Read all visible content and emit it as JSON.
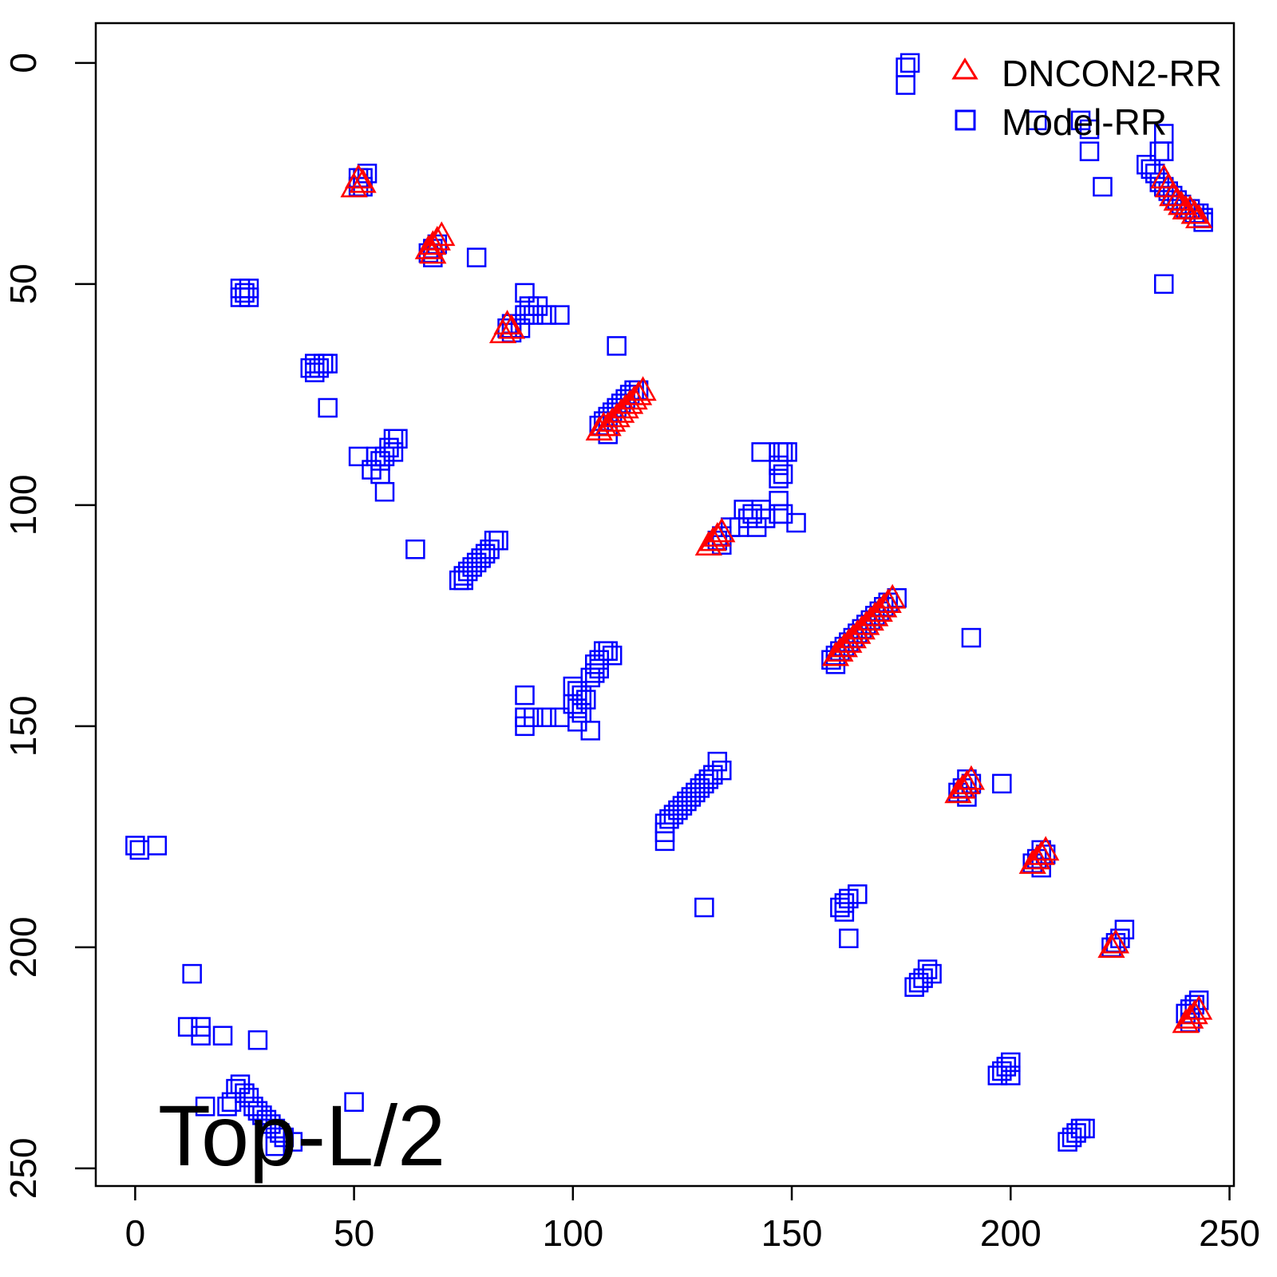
{
  "chart_data": {
    "type": "scatter",
    "title": "",
    "xlabel": "",
    "ylabel": "",
    "xlim": [
      -9,
      251
    ],
    "ylim": [
      -9,
      254
    ],
    "y_inverted": true,
    "x_ticks": [
      0,
      50,
      100,
      150,
      200,
      250
    ],
    "y_ticks": [
      0,
      50,
      100,
      150,
      200,
      250
    ],
    "grid": false,
    "annotation": "Top-L/2",
    "legend": {
      "placement": "top-right",
      "entries": [
        {
          "label": "DNCON2-RR",
          "marker": "triangle",
          "color": "#ff0000"
        },
        {
          "label": "Model-RR",
          "marker": "square",
          "color": "#0000ff"
        }
      ]
    },
    "series": [
      {
        "name": "Model-RR",
        "marker": "square",
        "color": "#0000ff",
        "points": [
          [
            177,
            0
          ],
          [
            176,
            1
          ],
          [
            176,
            5
          ],
          [
            206,
            13
          ],
          [
            216,
            13
          ],
          [
            218,
            15
          ],
          [
            235,
            16
          ],
          [
            234,
            20
          ],
          [
            235,
            20
          ],
          [
            218,
            20
          ],
          [
            231,
            23
          ],
          [
            232,
            24
          ],
          [
            233,
            25
          ],
          [
            234,
            27
          ],
          [
            235,
            28
          ],
          [
            236,
            29
          ],
          [
            237,
            30
          ],
          [
            238,
            31
          ],
          [
            239,
            32
          ],
          [
            240,
            33
          ],
          [
            241,
            33
          ],
          [
            242,
            34
          ],
          [
            243,
            34
          ],
          [
            244,
            35
          ],
          [
            244,
            36
          ],
          [
            221,
            28
          ],
          [
            235,
            50
          ],
          [
            51,
            26
          ],
          [
            52,
            26
          ],
          [
            53,
            25
          ],
          [
            51,
            28
          ],
          [
            52,
            28
          ],
          [
            68,
            42
          ],
          [
            69,
            41
          ],
          [
            67,
            43
          ],
          [
            68,
            44
          ],
          [
            78,
            44
          ],
          [
            24,
            51
          ],
          [
            25,
            52
          ],
          [
            26,
            51
          ],
          [
            24,
            53
          ],
          [
            26,
            53
          ],
          [
            89,
            52
          ],
          [
            90,
            55
          ],
          [
            92,
            55
          ],
          [
            89,
            57
          ],
          [
            91,
            57
          ],
          [
            94,
            57
          ],
          [
            97,
            57
          ],
          [
            86,
            59
          ],
          [
            85,
            60
          ],
          [
            86,
            61
          ],
          [
            88,
            60
          ],
          [
            110,
            64
          ],
          [
            40,
            69
          ],
          [
            41,
            68
          ],
          [
            42,
            69
          ],
          [
            43,
            68
          ],
          [
            44,
            68
          ],
          [
            41,
            70
          ],
          [
            44,
            78
          ],
          [
            106,
            82
          ],
          [
            107,
            81
          ],
          [
            108,
            80
          ],
          [
            109,
            79
          ],
          [
            110,
            78
          ],
          [
            111,
            77
          ],
          [
            112,
            76
          ],
          [
            113,
            75
          ],
          [
            114,
            74
          ],
          [
            115,
            74
          ],
          [
            108,
            84
          ],
          [
            59,
            85
          ],
          [
            60,
            85
          ],
          [
            58,
            87
          ],
          [
            59,
            88
          ],
          [
            57,
            89
          ],
          [
            56,
            90
          ],
          [
            51,
            89
          ],
          [
            55,
            89
          ],
          [
            54,
            92
          ],
          [
            56,
            93
          ],
          [
            57,
            97
          ],
          [
            64,
            110
          ],
          [
            143,
            88
          ],
          [
            147,
            88
          ],
          [
            148,
            88
          ],
          [
            149,
            88
          ],
          [
            147,
            91
          ],
          [
            148,
            93
          ],
          [
            147,
            94
          ],
          [
            147,
            99
          ],
          [
            147,
            102
          ],
          [
            148,
            102
          ],
          [
            151,
            104
          ],
          [
            139,
            101
          ],
          [
            140,
            103
          ],
          [
            141,
            102
          ],
          [
            143,
            101
          ],
          [
            144,
            103
          ],
          [
            142,
            105
          ],
          [
            138,
            105
          ],
          [
            136,
            105
          ],
          [
            134,
            107
          ],
          [
            133,
            108
          ],
          [
            134,
            109
          ],
          [
            82,
            108
          ],
          [
            83,
            108
          ],
          [
            81,
            110
          ],
          [
            80,
            111
          ],
          [
            79,
            112
          ],
          [
            78,
            113
          ],
          [
            77,
            114
          ],
          [
            76,
            115
          ],
          [
            75,
            116
          ],
          [
            74,
            117
          ],
          [
            75,
            117
          ],
          [
            174,
            121
          ],
          [
            172,
            122
          ],
          [
            171,
            123
          ],
          [
            170,
            124
          ],
          [
            169,
            125
          ],
          [
            168,
            126
          ],
          [
            167,
            127
          ],
          [
            166,
            128
          ],
          [
            165,
            129
          ],
          [
            164,
            130
          ],
          [
            163,
            131
          ],
          [
            162,
            132
          ],
          [
            161,
            133
          ],
          [
            160,
            134
          ],
          [
            159,
            135
          ],
          [
            160,
            136
          ],
          [
            191,
            130
          ],
          [
            107,
            133
          ],
          [
            108,
            133
          ],
          [
            109,
            134
          ],
          [
            106,
            135
          ],
          [
            105,
            136
          ],
          [
            106,
            137
          ],
          [
            105,
            138
          ],
          [
            104,
            139
          ],
          [
            100,
            141
          ],
          [
            101,
            142
          ],
          [
            102,
            143
          ],
          [
            103,
            144
          ],
          [
            100,
            145
          ],
          [
            101,
            146
          ],
          [
            102,
            147
          ],
          [
            101,
            149
          ],
          [
            104,
            151
          ],
          [
            89,
            143
          ],
          [
            89,
            148
          ],
          [
            89,
            150
          ],
          [
            91,
            148
          ],
          [
            94,
            148
          ],
          [
            97,
            148
          ],
          [
            133,
            158
          ],
          [
            134,
            160
          ],
          [
            132,
            161
          ],
          [
            131,
            162
          ],
          [
            130,
            163
          ],
          [
            129,
            164
          ],
          [
            128,
            165
          ],
          [
            127,
            166
          ],
          [
            126,
            167
          ],
          [
            125,
            168
          ],
          [
            124,
            169
          ],
          [
            123,
            170
          ],
          [
            122,
            171
          ],
          [
            121,
            172
          ],
          [
            121,
            174
          ],
          [
            121,
            176
          ],
          [
            190,
            162
          ],
          [
            191,
            163
          ],
          [
            189,
            164
          ],
          [
            188,
            165
          ],
          [
            190,
            166
          ],
          [
            198,
            163
          ],
          [
            207,
            178
          ],
          [
            208,
            179
          ],
          [
            206,
            180
          ],
          [
            205,
            181
          ],
          [
            207,
            182
          ],
          [
            0,
            177
          ],
          [
            5,
            177
          ],
          [
            1,
            178
          ],
          [
            165,
            188
          ],
          [
            163,
            189
          ],
          [
            162,
            190
          ],
          [
            161,
            191
          ],
          [
            162,
            192
          ],
          [
            163,
            198
          ],
          [
            130,
            191
          ],
          [
            226,
            196
          ],
          [
            225,
            198
          ],
          [
            224,
            199
          ],
          [
            223,
            200
          ],
          [
            181,
            205
          ],
          [
            182,
            206
          ],
          [
            180,
            207
          ],
          [
            179,
            208
          ],
          [
            178,
            209
          ],
          [
            243,
            212
          ],
          [
            242,
            213
          ],
          [
            241,
            214
          ],
          [
            240,
            215
          ],
          [
            241,
            217
          ],
          [
            13,
            206
          ],
          [
            12,
            218
          ],
          [
            15,
            218
          ],
          [
            15,
            220
          ],
          [
            20,
            220
          ],
          [
            28,
            221
          ],
          [
            200,
            226
          ],
          [
            199,
            227
          ],
          [
            198,
            228
          ],
          [
            197,
            229
          ],
          [
            200,
            229
          ],
          [
            23,
            232
          ],
          [
            24,
            231
          ],
          [
            25,
            233
          ],
          [
            26,
            234
          ],
          [
            22,
            235
          ],
          [
            21,
            236
          ],
          [
            27,
            236
          ],
          [
            28,
            237
          ],
          [
            29,
            238
          ],
          [
            30,
            239
          ],
          [
            31,
            240
          ],
          [
            32,
            241
          ],
          [
            33,
            242
          ],
          [
            34,
            243
          ],
          [
            36,
            244
          ],
          [
            32,
            245
          ],
          [
            16,
            236
          ],
          [
            50,
            235
          ],
          [
            216,
            241
          ],
          [
            217,
            241
          ],
          [
            215,
            242
          ],
          [
            214,
            243
          ],
          [
            213,
            244
          ]
        ]
      },
      {
        "name": "DNCON2-RR",
        "marker": "triangle",
        "color": "#ff0000",
        "points": [
          [
            51,
            26
          ],
          [
            52,
            27
          ],
          [
            50,
            28
          ],
          [
            70,
            39
          ],
          [
            69,
            40
          ],
          [
            68,
            41
          ],
          [
            67,
            42
          ],
          [
            68,
            43
          ],
          [
            85,
            59
          ],
          [
            86,
            60
          ],
          [
            84,
            61
          ],
          [
            116,
            74
          ],
          [
            115,
            75
          ],
          [
            114,
            76
          ],
          [
            113,
            77
          ],
          [
            112,
            78
          ],
          [
            111,
            79
          ],
          [
            110,
            80
          ],
          [
            109,
            81
          ],
          [
            108,
            82
          ],
          [
            107,
            82
          ],
          [
            106,
            83
          ],
          [
            235,
            26
          ],
          [
            236,
            28
          ],
          [
            237,
            30
          ],
          [
            238,
            31
          ],
          [
            239,
            32
          ],
          [
            240,
            33
          ],
          [
            241,
            33
          ],
          [
            242,
            34
          ],
          [
            243,
            35
          ],
          [
            134,
            106
          ],
          [
            133,
            107
          ],
          [
            132,
            108
          ],
          [
            131,
            109
          ],
          [
            173,
            121
          ],
          [
            172,
            122
          ],
          [
            171,
            123
          ],
          [
            170,
            124
          ],
          [
            169,
            125
          ],
          [
            168,
            126
          ],
          [
            167,
            127
          ],
          [
            166,
            128
          ],
          [
            165,
            129
          ],
          [
            164,
            130
          ],
          [
            163,
            131
          ],
          [
            162,
            132
          ],
          [
            161,
            133
          ],
          [
            160,
            134
          ],
          [
            191,
            162
          ],
          [
            190,
            163
          ],
          [
            189,
            164
          ],
          [
            188,
            165
          ],
          [
            208,
            178
          ],
          [
            207,
            179
          ],
          [
            206,
            180
          ],
          [
            205,
            181
          ],
          [
            224,
            199
          ],
          [
            223,
            200
          ],
          [
            243,
            214
          ],
          [
            242,
            215
          ],
          [
            241,
            216
          ],
          [
            240,
            217
          ]
        ]
      }
    ]
  }
}
